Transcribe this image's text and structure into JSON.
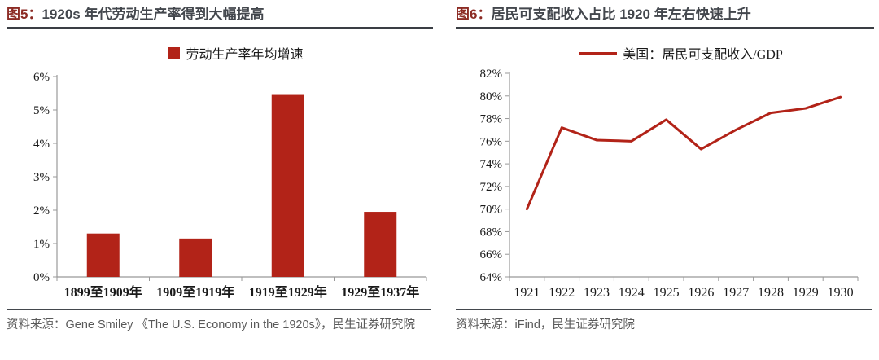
{
  "fig5": {
    "title_prefix": "图5：",
    "title_text": "1920s 年代劳动生产率得到大幅提高",
    "legend_label": "劳动生产率年均增速",
    "source": "资料来源：Gene Smiley 《The U.S. Economy in the 1920s》，民生证券研究院"
  },
  "fig6": {
    "title_prefix": "图6：",
    "title_text": "居民可支配收入占比 1920 年左右快速上升",
    "legend_label": "美国：居民可支配收入/GDP",
    "source": "资料来源：iFind，民生证券研究院"
  },
  "colors": {
    "series_red": "#b22318",
    "axis_gray": "#999999",
    "tick_label": "#1a1a1a"
  },
  "chart_data": [
    {
      "type": "bar",
      "title": "1920s 年代劳动生产率得到大幅提高",
      "legend": [
        "劳动生产率年均增速"
      ],
      "legend_position": "top",
      "categories": [
        "1899至1909年",
        "1909至1919年",
        "1919至1929年",
        "1929至1937年"
      ],
      "values": [
        1.3,
        1.15,
        5.45,
        1.95
      ],
      "xlabel": "",
      "ylabel": "",
      "ylim": [
        0,
        6
      ],
      "ytick_step": 1,
      "ytick_suffix": "%",
      "grid": false
    },
    {
      "type": "line",
      "title": "居民可支配收入占比 1920 年左右快速上升",
      "legend": [
        "美国：居民可支配收入/GDP"
      ],
      "legend_position": "top",
      "categories": [
        "1921",
        "1922",
        "1923",
        "1924",
        "1925",
        "1926",
        "1927",
        "1928",
        "1929",
        "1930"
      ],
      "values": [
        70.0,
        77.2,
        76.1,
        76.0,
        77.9,
        75.3,
        77.0,
        78.5,
        78.9,
        79.9
      ],
      "xlabel": "",
      "ylabel": "",
      "ylim": [
        64,
        82
      ],
      "ytick_step": 2,
      "ytick_suffix": "%",
      "grid": false
    }
  ]
}
